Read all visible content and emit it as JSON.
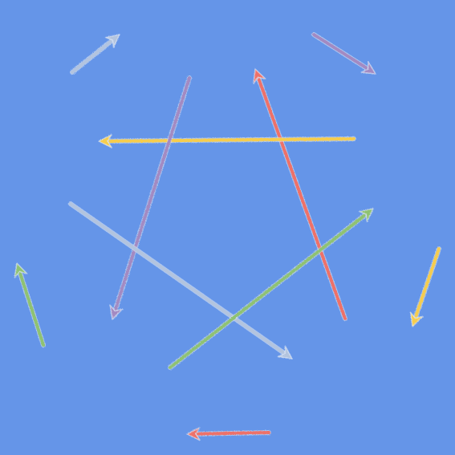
{
  "background": "#6595e8",
  "colors": {
    "red": "#ee7169",
    "yellow": "#f6cd4e",
    "purple": "#a38ac2",
    "green": "#8fc272",
    "grey": "#b3c4de"
  },
  "arrows": [
    {
      "id": "star-red",
      "color": "red",
      "direction": "up"
    },
    {
      "id": "star-yellow",
      "color": "yellow",
      "direction": "left"
    },
    {
      "id": "star-purple",
      "color": "purple",
      "direction": "down"
    },
    {
      "id": "star-grey",
      "color": "grey",
      "direction": "down-right"
    },
    {
      "id": "star-green",
      "color": "green",
      "direction": "up-right"
    },
    {
      "id": "outer-grey",
      "color": "grey",
      "direction": "up-right"
    },
    {
      "id": "outer-purple",
      "color": "purple",
      "direction": "down-right"
    },
    {
      "id": "outer-yellow",
      "color": "yellow",
      "direction": "down"
    },
    {
      "id": "outer-red",
      "color": "red",
      "direction": "left"
    },
    {
      "id": "outer-green",
      "color": "green",
      "direction": "up"
    }
  ]
}
